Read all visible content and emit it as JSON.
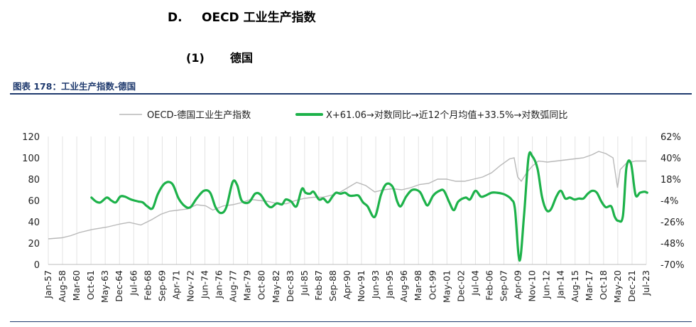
{
  "section": {
    "num": "D.",
    "title": "OECD 工业生产指数"
  },
  "subsection": {
    "num": "(1)",
    "title": "德国"
  },
  "figure_title": "图表 178：工业生产指数-德国",
  "colors": {
    "gray_series": "#b8b8b8",
    "green_series": "#1db24a",
    "title_blue": "#1f3a6e"
  },
  "chart_data": {
    "type": "line",
    "left_axis": {
      "range": [
        0,
        120
      ],
      "ticks": [
        "0",
        "20",
        "40",
        "60",
        "80",
        "100",
        "120"
      ]
    },
    "right_axis": {
      "range": [
        -70,
        62
      ],
      "ticks": [
        "-70%",
        "-48%",
        "-26%",
        "-4%",
        "18%",
        "40%",
        "62%"
      ]
    },
    "x_ticks": [
      "Jan-57",
      "Aug-58",
      "Mar-60",
      "Oct-61",
      "May-63",
      "Dec-64",
      "Jul-66",
      "Feb-68",
      "Sep-69",
      "Apr-71",
      "Nov-72",
      "Jun-74",
      "Jan-76",
      "Aug-77",
      "Mar-79",
      "Oct-80",
      "May-82",
      "Dec-83",
      "Jul-85",
      "Feb-87",
      "Sep-88",
      "Apr-90",
      "Nov-91",
      "Jun-93",
      "Jan-95",
      "Aug-96",
      "Mar-98",
      "Oct-99",
      "May-01",
      "Dec-02",
      "Jul-04",
      "Feb-06",
      "Sep-07",
      "Apr-09",
      "Nov-10",
      "Jun-12",
      "Jan-14",
      "Aug-15",
      "Mar-17",
      "Oct-18",
      "May-20",
      "Dec-21",
      "Jul-23"
    ],
    "series": [
      {
        "name": "OECD-德国工业生产指数",
        "axis": "left",
        "points": [
          [
            1957.0,
            24
          ],
          [
            1958.5,
            25
          ],
          [
            1959.5,
            27
          ],
          [
            1960.5,
            30
          ],
          [
            1962,
            33
          ],
          [
            1963.5,
            35
          ],
          [
            1965,
            38
          ],
          [
            1966,
            39.5
          ],
          [
            1967.3,
            37
          ],
          [
            1968.5,
            42
          ],
          [
            1969.5,
            47
          ],
          [
            1970.5,
            50
          ],
          [
            1971.5,
            51
          ],
          [
            1972.5,
            52
          ],
          [
            1973.5,
            56
          ],
          [
            1974.5,
            55
          ],
          [
            1975.3,
            51
          ],
          [
            1976.5,
            55
          ],
          [
            1977.5,
            56
          ],
          [
            1978.5,
            58
          ],
          [
            1979.5,
            61
          ],
          [
            1980.5,
            60
          ],
          [
            1981.5,
            59
          ],
          [
            1982.5,
            57
          ],
          [
            1983.5,
            57
          ],
          [
            1984.5,
            60
          ],
          [
            1985.5,
            62
          ],
          [
            1986.5,
            63
          ],
          [
            1987.5,
            63
          ],
          [
            1988.5,
            65
          ],
          [
            1989.5,
            68
          ],
          [
            1990.5,
            73
          ],
          [
            1991.3,
            77
          ],
          [
            1992.3,
            74
          ],
          [
            1993.3,
            68
          ],
          [
            1994.3,
            70
          ],
          [
            1995.3,
            71
          ],
          [
            1996.3,
            70
          ],
          [
            1997.3,
            72
          ],
          [
            1998.3,
            75
          ],
          [
            1999.3,
            76
          ],
          [
            2000.3,
            80
          ],
          [
            2001.3,
            80
          ],
          [
            2002.3,
            78
          ],
          [
            2003.3,
            78
          ],
          [
            2004.3,
            80
          ],
          [
            2005.3,
            82
          ],
          [
            2006.3,
            86
          ],
          [
            2007.3,
            93
          ],
          [
            2008.3,
            99
          ],
          [
            2008.8,
            100
          ],
          [
            2009.2,
            82
          ],
          [
            2009.6,
            78
          ],
          [
            2010.2,
            86
          ],
          [
            2010.8,
            92
          ],
          [
            2011.5,
            97
          ],
          [
            2012.5,
            96
          ],
          [
            2013.5,
            97
          ],
          [
            2014.5,
            98
          ],
          [
            2015.5,
            99
          ],
          [
            2016.5,
            100
          ],
          [
            2017.5,
            103
          ],
          [
            2018.2,
            106
          ],
          [
            2019.0,
            104
          ],
          [
            2019.8,
            100
          ],
          [
            2020.3,
            72
          ],
          [
            2020.6,
            89
          ],
          [
            2021.3,
            95
          ],
          [
            2022.3,
            97
          ],
          [
            2023.5,
            97
          ]
        ]
      },
      {
        "name": "X+61.06→对数同比→近12个月均值+33.5%→对数弧同比",
        "axis": "right",
        "points": [
          [
            1961.8,
            -1
          ],
          [
            1962.3,
            -5
          ],
          [
            1962.8,
            -6
          ],
          [
            1963.5,
            -1
          ],
          [
            1964.0,
            -4
          ],
          [
            1964.5,
            -6
          ],
          [
            1965.0,
            0
          ],
          [
            1965.5,
            0
          ],
          [
            1966.2,
            -3
          ],
          [
            1967.0,
            -5
          ],
          [
            1967.5,
            -6
          ],
          [
            1968.0,
            -10
          ],
          [
            1968.6,
            -12
          ],
          [
            1969.2,
            3
          ],
          [
            1970.0,
            14
          ],
          [
            1970.8,
            13
          ],
          [
            1971.5,
            -2
          ],
          [
            1972.2,
            -10
          ],
          [
            1972.8,
            -11
          ],
          [
            1973.5,
            -2
          ],
          [
            1974.3,
            6
          ],
          [
            1975.0,
            4
          ],
          [
            1975.6,
            -11
          ],
          [
            1976.2,
            -17
          ],
          [
            1976.8,
            -11
          ],
          [
            1977.5,
            15
          ],
          [
            1978.0,
            12
          ],
          [
            1978.5,
            -4
          ],
          [
            1979.3,
            -6
          ],
          [
            1980.0,
            3
          ],
          [
            1980.6,
            2
          ],
          [
            1981.3,
            -8
          ],
          [
            1981.8,
            -11
          ],
          [
            1982.4,
            -7
          ],
          [
            1983.0,
            -8
          ],
          [
            1983.4,
            -3
          ],
          [
            1984.0,
            -5
          ],
          [
            1984.6,
            -10
          ],
          [
            1985.2,
            8
          ],
          [
            1985.6,
            4
          ],
          [
            1986.1,
            3
          ],
          [
            1986.5,
            5
          ],
          [
            1987.1,
            -3
          ],
          [
            1987.6,
            -2
          ],
          [
            1988.1,
            -6
          ],
          [
            1988.6,
            0
          ],
          [
            1989.0,
            4
          ],
          [
            1989.5,
            3
          ],
          [
            1990.0,
            4
          ],
          [
            1990.5,
            1
          ],
          [
            1991.0,
            1
          ],
          [
            1991.5,
            1
          ],
          [
            1992.0,
            -6
          ],
          [
            1992.5,
            -10
          ],
          [
            1993.3,
            -21
          ],
          [
            1994.0,
            2
          ],
          [
            1994.6,
            13
          ],
          [
            1995.3,
            10
          ],
          [
            1995.8,
            -5
          ],
          [
            1996.2,
            -10
          ],
          [
            1996.8,
            0
          ],
          [
            1997.5,
            7
          ],
          [
            1998.3,
            5
          ],
          [
            1998.8,
            -4
          ],
          [
            1999.2,
            -9
          ],
          [
            1999.8,
            1
          ],
          [
            2000.5,
            6
          ],
          [
            2001.0,
            6
          ],
          [
            2001.6,
            -6
          ],
          [
            2002.1,
            -14
          ],
          [
            2002.6,
            -5
          ],
          [
            2003.4,
            -1
          ],
          [
            2003.9,
            -3
          ],
          [
            2004.5,
            6
          ],
          [
            2005.1,
            0
          ],
          [
            2005.6,
            1
          ],
          [
            2006.3,
            4
          ],
          [
            2006.9,
            4
          ],
          [
            2007.5,
            3
          ],
          [
            2008.0,
            1
          ],
          [
            2008.5,
            -3
          ],
          [
            2008.9,
            -13
          ],
          [
            2009.4,
            -66
          ],
          [
            2009.9,
            -20
          ],
          [
            2010.4,
            40
          ],
          [
            2010.8,
            42
          ],
          [
            2011.4,
            29
          ],
          [
            2011.9,
            0
          ],
          [
            2012.4,
            -14
          ],
          [
            2012.9,
            -13
          ],
          [
            2013.5,
            0
          ],
          [
            2014.0,
            6
          ],
          [
            2014.5,
            -2
          ],
          [
            2015.0,
            -1
          ],
          [
            2015.5,
            -3
          ],
          [
            2016.0,
            -2
          ],
          [
            2016.5,
            -2
          ],
          [
            2017.0,
            3
          ],
          [
            2017.5,
            6
          ],
          [
            2018.0,
            4
          ],
          [
            2018.5,
            -5
          ],
          [
            2019.0,
            -11
          ],
          [
            2019.6,
            -10
          ],
          [
            2020.0,
            -21
          ],
          [
            2020.4,
            -25
          ],
          [
            2020.9,
            -20
          ],
          [
            2021.3,
            30
          ],
          [
            2021.8,
            34
          ],
          [
            2022.3,
            2
          ],
          [
            2022.8,
            4
          ],
          [
            2023.3,
            5
          ],
          [
            2023.6,
            4
          ]
        ]
      }
    ],
    "legend_position": "top",
    "grid": "vertical"
  }
}
